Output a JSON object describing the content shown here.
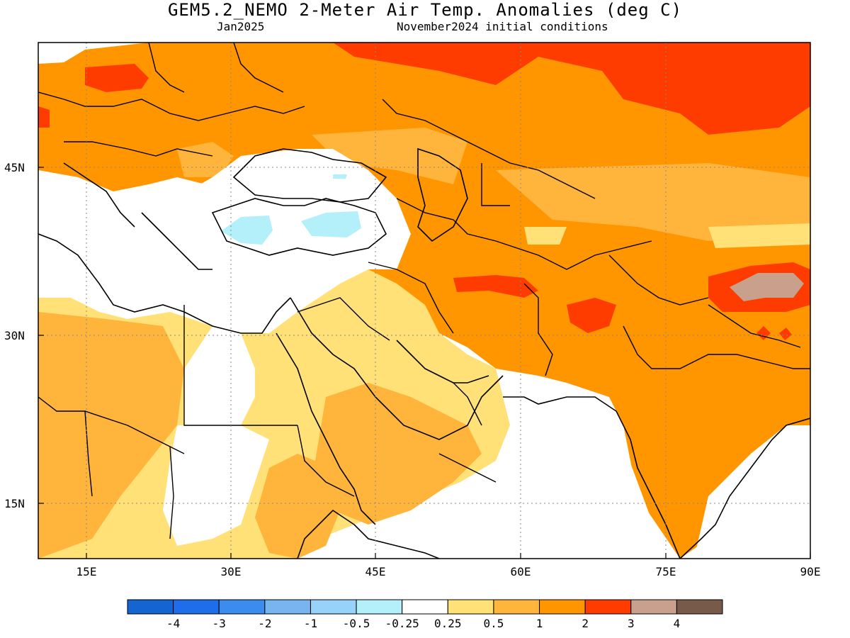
{
  "header": {
    "title": "GEM5.2_NEMO 2-Meter Air Temp. Anomalies (deg C)",
    "subtitle_left": "Jan2025",
    "subtitle_right": "November2024 initial conditions"
  },
  "map": {
    "type": "anomaly-map",
    "region": "Middle East / South Asia",
    "lat_labels": [
      "45N",
      "30N",
      "15N"
    ],
    "lon_labels": [
      "15E",
      "30E",
      "45E",
      "60E",
      "75E",
      "90E"
    ],
    "anomaly_areas": [
      {
        "name": "europe-north",
        "category": "1 to 2"
      },
      {
        "name": "central-asia-north",
        "category": "2 to 3"
      },
      {
        "name": "turkey-cold-1",
        "category": "-0.5 to -0.25"
      },
      {
        "name": "turkey-cold-2",
        "category": "-0.5 to -0.25"
      },
      {
        "name": "iran-warm",
        "category": "2 to 3"
      },
      {
        "name": "afghanistan-warm",
        "category": "2 to 3"
      },
      {
        "name": "tibet-warm",
        "category": "3 to 4"
      },
      {
        "name": "arabia-mild",
        "category": "0.25 to 0.5"
      },
      {
        "name": "india-warm",
        "category": "1 to 2"
      },
      {
        "name": "africa-mild",
        "category": "0.25 to 0.5"
      }
    ]
  },
  "colorbar": {
    "colors": [
      "#1464d2",
      "#1e6eeb",
      "#3c8cf0",
      "#78b4f0",
      "#96d2fa",
      "#b4f0fa",
      "#ffffff",
      "#ffe178",
      "#ffb43c",
      "#ff9600",
      "#ff3c00",
      "#c8a08c",
      "#785a4b"
    ],
    "labels": [
      "-4",
      "-3",
      "-2",
      "-1",
      "-0.5",
      "-0.25",
      "0.25",
      "0.5",
      "1",
      "2",
      "3",
      "4"
    ]
  }
}
